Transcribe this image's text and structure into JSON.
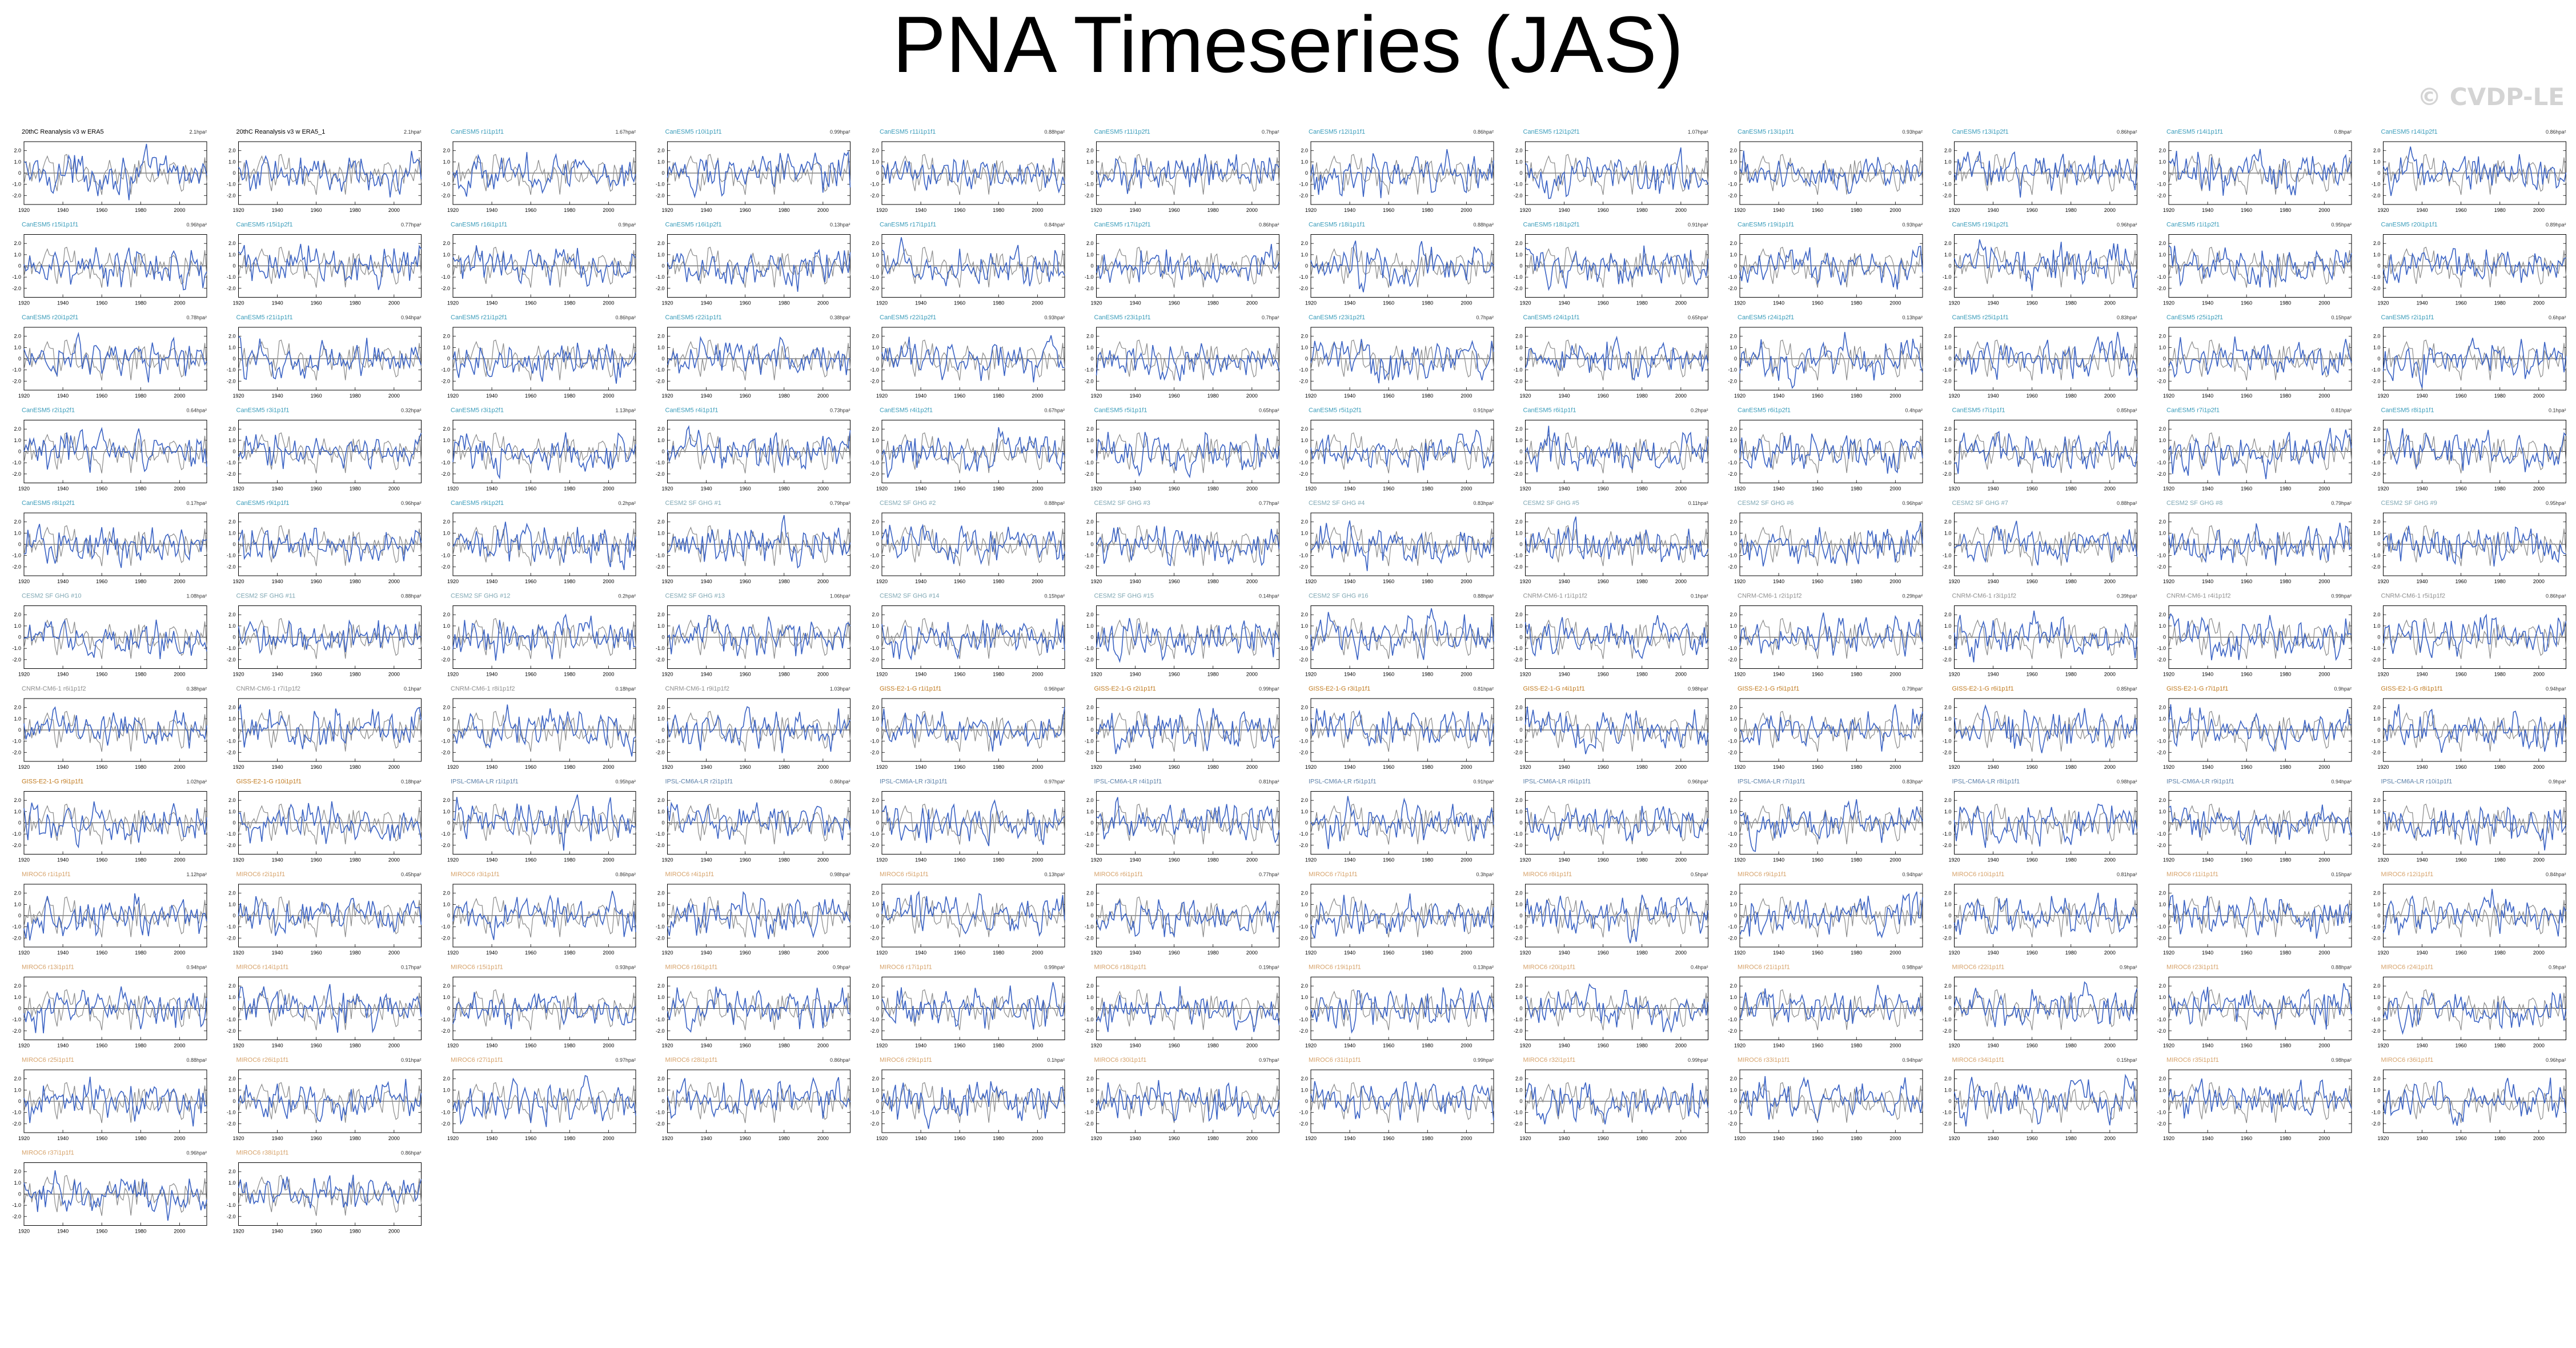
{
  "page": {
    "title": "PNA Timeseries (JAS)",
    "watermark": "© CVDP-LE"
  },
  "chart_data": {
    "type": "line",
    "x_range": [
      1920,
      2014
    ],
    "x_ticks": [
      "1920",
      "1940",
      "1960",
      "1980",
      "2000"
    ],
    "y_ticks": [
      "2.0",
      "1.0",
      "0",
      "-1.0",
      "-2.0"
    ],
    "ylim": [
      -2.8,
      2.8
    ],
    "grid": false,
    "colors": {
      "reference": "#8a8a8a",
      "model": "#3b63c4",
      "obs_title": "#000000",
      "cesm1": "#3a9cba",
      "cesm2": "#7fa7b3",
      "cnrm": "#8f8f8f",
      "giss": "#c07a1f",
      "ipsl": "#5c80a8",
      "miroc": "#d6a26a"
    },
    "panels": [
      {
        "title": "20thC Reanalysis v3 w ERA5",
        "stat": "2.1hpa²",
        "color": "obs"
      },
      {
        "title": "20thC Reanalysis v3 w ERA5_1",
        "stat": "2.1hpa²",
        "color": "obs"
      },
      {
        "title": "CanESM5 r1i1p1f1",
        "stat": "1.67hpa²",
        "color": "cesm1"
      },
      {
        "title": "CanESM5 r10i1p1f1",
        "stat": "0.99hpa²",
        "color": "cesm1"
      },
      {
        "title": "CanESM5 r11i1p1f1",
        "stat": "0.88hpa²",
        "color": "cesm1"
      },
      {
        "title": "CanESM5 r11i1p2f1",
        "stat": "0.7hpa²",
        "color": "cesm1"
      },
      {
        "title": "CanESM5 r12i1p1f1",
        "stat": "0.86hpa²",
        "color": "cesm1"
      },
      {
        "title": "CanESM5 r12i1p2f1",
        "stat": "1.07hpa²",
        "color": "cesm1"
      },
      {
        "title": "CanESM5 r13i1p1f1",
        "stat": "0.93hpa²",
        "color": "cesm1"
      },
      {
        "title": "CanESM5 r13i1p2f1",
        "stat": "0.86hpa²",
        "color": "cesm1"
      },
      {
        "title": "CanESM5 r14i1p1f1",
        "stat": "0.8hpa²",
        "color": "cesm1"
      },
      {
        "title": "CanESM5 r14i1p2f1",
        "stat": "0.86hpa²",
        "color": "cesm1"
      },
      {
        "title": "CanESM5 r15i1p1f1",
        "stat": "0.96hpa²",
        "color": "cesm1"
      },
      {
        "title": "CanESM5 r15i1p2f1",
        "stat": "0.77hpa²",
        "color": "cesm1"
      },
      {
        "title": "CanESM5 r16i1p1f1",
        "stat": "0.9hpa²",
        "color": "cesm1"
      },
      {
        "title": "CanESM5 r16i1p2f1",
        "stat": "0.13hpa²",
        "color": "cesm1"
      },
      {
        "title": "CanESM5 r17i1p1f1",
        "stat": "0.84hpa²",
        "color": "cesm1"
      },
      {
        "title": "CanESM5 r17i1p2f1",
        "stat": "0.86hpa²",
        "color": "cesm1"
      },
      {
        "title": "CanESM5 r18i1p1f1",
        "stat": "0.88hpa²",
        "color": "cesm1"
      },
      {
        "title": "CanESM5 r18i1p2f1",
        "stat": "0.91hpa²",
        "color": "cesm1"
      },
      {
        "title": "CanESM5 r19i1p1f1",
        "stat": "0.93hpa²",
        "color": "cesm1"
      },
      {
        "title": "CanESM5 r19i1p2f1",
        "stat": "0.96hpa²",
        "color": "cesm1"
      },
      {
        "title": "CanESM5 r1i1p2f1",
        "stat": "0.95hpa²",
        "color": "cesm1"
      },
      {
        "title": "CanESM5 r20i1p1f1",
        "stat": "0.89hpa²",
        "color": "cesm1"
      },
      {
        "title": "CanESM5 r20i1p2f1",
        "stat": "0.78hpa²",
        "color": "cesm1"
      },
      {
        "title": "CanESM5 r21i1p1f1",
        "stat": "0.94hpa²",
        "color": "cesm1"
      },
      {
        "title": "CanESM5 r21i1p2f1",
        "stat": "0.86hpa²",
        "color": "cesm1"
      },
      {
        "title": "CanESM5 r22i1p1f1",
        "stat": "0.38hpa²",
        "color": "cesm1"
      },
      {
        "title": "CanESM5 r22i1p2f1",
        "stat": "0.93hpa²",
        "color": "cesm1"
      },
      {
        "title": "CanESM5 r23i1p1f1",
        "stat": "0.7hpa²",
        "color": "cesm1"
      },
      {
        "title": "CanESM5 r23i1p2f1",
        "stat": "0.7hpa²",
        "color": "cesm1"
      },
      {
        "title": "CanESM5 r24i1p1f1",
        "stat": "0.65hpa²",
        "color": "cesm1"
      },
      {
        "title": "CanESM5 r24i1p2f1",
        "stat": "0.13hpa²",
        "color": "cesm1"
      },
      {
        "title": "CanESM5 r25i1p1f1",
        "stat": "0.83hpa²",
        "color": "cesm1"
      },
      {
        "title": "CanESM5 r25i1p2f1",
        "stat": "0.15hpa²",
        "color": "cesm1"
      },
      {
        "title": "CanESM5 r2i1p1f1",
        "stat": "0.6hpa²",
        "color": "cesm1"
      },
      {
        "title": "CanESM5 r2i1p2f1",
        "stat": "0.64hpa²",
        "color": "cesm1"
      },
      {
        "title": "CanESM5 r3i1p1f1",
        "stat": "0.32hpa²",
        "color": "cesm1"
      },
      {
        "title": "CanESM5 r3i1p2f1",
        "stat": "1.13hpa²",
        "color": "cesm1"
      },
      {
        "title": "CanESM5 r4i1p1f1",
        "stat": "0.73hpa²",
        "color": "cesm1"
      },
      {
        "title": "CanESM5 r4i1p2f1",
        "stat": "0.67hpa²",
        "color": "cesm1"
      },
      {
        "title": "CanESM5 r5i1p1f1",
        "stat": "0.65hpa²",
        "color": "cesm1"
      },
      {
        "title": "CanESM5 r5i1p2f1",
        "stat": "0.91hpa²",
        "color": "cesm1"
      },
      {
        "title": "CanESM5 r6i1p1f1",
        "stat": "0.2hpa²",
        "color": "cesm1"
      },
      {
        "title": "CanESM5 r6i1p2f1",
        "stat": "0.4hpa²",
        "color": "cesm1"
      },
      {
        "title": "CanESM5 r7i1p1f1",
        "stat": "0.85hpa²",
        "color": "cesm1"
      },
      {
        "title": "CanESM5 r7i1p2f1",
        "stat": "0.81hpa²",
        "color": "cesm1"
      },
      {
        "title": "CanESM5 r8i1p1f1",
        "stat": "0.1hpa²",
        "color": "cesm1"
      },
      {
        "title": "CanESM5 r8i1p2f1",
        "stat": "0.17hpa²",
        "color": "cesm1"
      },
      {
        "title": "CanESM5 r9i1p1f1",
        "stat": "0.96hpa²",
        "color": "cesm1"
      },
      {
        "title": "CanESM5 r9i1p2f1",
        "stat": "0.2hpa²",
        "color": "cesm1"
      },
      {
        "title": "CESM2 SF GHG #1",
        "stat": "0.79hpa²",
        "color": "cesm2"
      },
      {
        "title": "CESM2 SF GHG #2",
        "stat": "0.88hpa²",
        "color": "cesm2"
      },
      {
        "title": "CESM2 SF GHG #3",
        "stat": "0.77hpa²",
        "color": "cesm2"
      },
      {
        "title": "CESM2 SF GHG #4",
        "stat": "0.83hpa²",
        "color": "cesm2"
      },
      {
        "title": "CESM2 SF GHG #5",
        "stat": "0.11hpa²",
        "color": "cesm2"
      },
      {
        "title": "CESM2 SF GHG #6",
        "stat": "0.96hpa²",
        "color": "cesm2"
      },
      {
        "title": "CESM2 SF GHG #7",
        "stat": "0.88hpa²",
        "color": "cesm2"
      },
      {
        "title": "CESM2 SF GHG #8",
        "stat": "0.79hpa²",
        "color": "cesm2"
      },
      {
        "title": "CESM2 SF GHG #9",
        "stat": "0.95hpa²",
        "color": "cesm2"
      },
      {
        "title": "CESM2 SF GHG #10",
        "stat": "1.08hpa²",
        "color": "cesm2"
      },
      {
        "title": "CESM2 SF GHG #11",
        "stat": "0.88hpa²",
        "color": "cesm2"
      },
      {
        "title": "CESM2 SF GHG #12",
        "stat": "0.2hpa²",
        "color": "cesm2"
      },
      {
        "title": "CESM2 SF GHG #13",
        "stat": "1.06hpa²",
        "color": "cesm2"
      },
      {
        "title": "CESM2 SF GHG #14",
        "stat": "0.15hpa²",
        "color": "cesm2"
      },
      {
        "title": "CESM2 SF GHG #15",
        "stat": "0.14hpa²",
        "color": "cesm2"
      },
      {
        "title": "CESM2 SF GHG #16",
        "stat": "0.88hpa²",
        "color": "cesm2"
      },
      {
        "title": "CNRM-CM6-1 r1i1p1f2",
        "stat": "0.1hpa²",
        "color": "cnrm"
      },
      {
        "title": "CNRM-CM6-1 r2i1p1f2",
        "stat": "0.29hpa²",
        "color": "cnrm"
      },
      {
        "title": "CNRM-CM6-1 r3i1p1f2",
        "stat": "0.39hpa²",
        "color": "cnrm"
      },
      {
        "title": "CNRM-CM6-1 r4i1p1f2",
        "stat": "0.99hpa²",
        "color": "cnrm"
      },
      {
        "title": "CNRM-CM6-1 r5i1p1f2",
        "stat": "0.86hpa²",
        "color": "cnrm"
      },
      {
        "title": "CNRM-CM6-1 r6i1p1f2",
        "stat": "0.38hpa²",
        "color": "cnrm"
      },
      {
        "title": "CNRM-CM6-1 r7i1p1f2",
        "stat": "0.1hpa²",
        "color": "cnrm"
      },
      {
        "title": "CNRM-CM6-1 r8i1p1f2",
        "stat": "0.18hpa²",
        "color": "cnrm"
      },
      {
        "title": "CNRM-CM6-1 r9i1p1f2",
        "stat": "1.03hpa²",
        "color": "cnrm"
      },
      {
        "title": "GISS-E2-1-G r1i1p1f1",
        "stat": "0.96hpa²",
        "color": "giss"
      },
      {
        "title": "GISS-E2-1-G r2i1p1f1",
        "stat": "0.99hpa²",
        "color": "giss"
      },
      {
        "title": "GISS-E2-1-G r3i1p1f1",
        "stat": "0.81hpa²",
        "color": "giss"
      },
      {
        "title": "GISS-E2-1-G r4i1p1f1",
        "stat": "0.98hpa²",
        "color": "giss"
      },
      {
        "title": "GISS-E2-1-G r5i1p1f1",
        "stat": "0.79hpa²",
        "color": "giss"
      },
      {
        "title": "GISS-E2-1-G r6i1p1f1",
        "stat": "0.85hpa²",
        "color": "giss"
      },
      {
        "title": "GISS-E2-1-G r7i1p1f1",
        "stat": "0.9hpa²",
        "color": "giss"
      },
      {
        "title": "GISS-E2-1-G r8i1p1f1",
        "stat": "0.94hpa²",
        "color": "giss"
      },
      {
        "title": "GISS-E2-1-G r9i1p1f1",
        "stat": "1.02hpa²",
        "color": "giss"
      },
      {
        "title": "GISS-E2-1-G r10i1p1f1",
        "stat": "0.18hpa²",
        "color": "giss"
      },
      {
        "title": "IPSL-CM6A-LR r1i1p1f1",
        "stat": "0.95hpa²",
        "color": "ipsl"
      },
      {
        "title": "IPSL-CM6A-LR r2i1p1f1",
        "stat": "0.86hpa²",
        "color": "ipsl"
      },
      {
        "title": "IPSL-CM6A-LR r3i1p1f1",
        "stat": "0.97hpa²",
        "color": "ipsl"
      },
      {
        "title": "IPSL-CM6A-LR r4i1p1f1",
        "stat": "0.81hpa²",
        "color": "ipsl"
      },
      {
        "title": "IPSL-CM6A-LR r5i1p1f1",
        "stat": "0.91hpa²",
        "color": "ipsl"
      },
      {
        "title": "IPSL-CM6A-LR r6i1p1f1",
        "stat": "0.96hpa²",
        "color": "ipsl"
      },
      {
        "title": "IPSL-CM6A-LR r7i1p1f1",
        "stat": "0.83hpa²",
        "color": "ipsl"
      },
      {
        "title": "IPSL-CM6A-LR r8i1p1f1",
        "stat": "0.98hpa²",
        "color": "ipsl"
      },
      {
        "title": "IPSL-CM6A-LR r9i1p1f1",
        "stat": "0.94hpa²",
        "color": "ipsl"
      },
      {
        "title": "IPSL-CM6A-LR r10i1p1f1",
        "stat": "0.9hpa²",
        "color": "ipsl"
      },
      {
        "title": "MIROC6 r1i1p1f1",
        "stat": "1.12hpa²",
        "color": "miroc"
      },
      {
        "title": "MIROC6 r2i1p1f1",
        "stat": "0.45hpa²",
        "color": "miroc"
      },
      {
        "title": "MIROC6 r3i1p1f1",
        "stat": "0.86hpa²",
        "color": "miroc"
      },
      {
        "title": "MIROC6 r4i1p1f1",
        "stat": "0.98hpa²",
        "color": "miroc"
      },
      {
        "title": "MIROC6 r5i1p1f1",
        "stat": "0.13hpa²",
        "color": "miroc"
      },
      {
        "title": "MIROC6 r6i1p1f1",
        "stat": "0.77hpa²",
        "color": "miroc"
      },
      {
        "title": "MIROC6 r7i1p1f1",
        "stat": "0.3hpa²",
        "color": "miroc"
      },
      {
        "title": "MIROC6 r8i1p1f1",
        "stat": "0.5hpa²",
        "color": "miroc"
      },
      {
        "title": "MIROC6 r9i1p1f1",
        "stat": "0.94hpa²",
        "color": "miroc"
      },
      {
        "title": "MIROC6 r10i1p1f1",
        "stat": "0.81hpa²",
        "color": "miroc"
      },
      {
        "title": "MIROC6 r11i1p1f1",
        "stat": "0.15hpa²",
        "color": "miroc"
      },
      {
        "title": "MIROC6 r12i1p1f1",
        "stat": "0.84hpa²",
        "color": "miroc"
      },
      {
        "title": "MIROC6 r13i1p1f1",
        "stat": "0.94hpa²",
        "color": "miroc"
      },
      {
        "title": "MIROC6 r14i1p1f1",
        "stat": "0.17hpa²",
        "color": "miroc"
      },
      {
        "title": "MIROC6 r15i1p1f1",
        "stat": "0.93hpa²",
        "color": "miroc"
      },
      {
        "title": "MIROC6 r16i1p1f1",
        "stat": "0.9hpa²",
        "color": "miroc"
      },
      {
        "title": "MIROC6 r17i1p1f1",
        "stat": "0.99hpa²",
        "color": "miroc"
      },
      {
        "title": "MIROC6 r18i1p1f1",
        "stat": "0.19hpa²",
        "color": "miroc"
      },
      {
        "title": "MIROC6 r19i1p1f1",
        "stat": "0.13hpa²",
        "color": "miroc"
      },
      {
        "title": "MIROC6 r20i1p1f1",
        "stat": "0.4hpa²",
        "color": "miroc"
      },
      {
        "title": "MIROC6 r21i1p1f1",
        "stat": "0.98hpa²",
        "color": "miroc"
      },
      {
        "title": "MIROC6 r22i1p1f1",
        "stat": "0.9hpa²",
        "color": "miroc"
      },
      {
        "title": "MIROC6 r23i1p1f1",
        "stat": "0.88hpa²",
        "color": "miroc"
      },
      {
        "title": "MIROC6 r24i1p1f1",
        "stat": "0.9hpa²",
        "color": "miroc"
      },
      {
        "title": "MIROC6 r25i1p1f1",
        "stat": "0.88hpa²",
        "color": "miroc"
      },
      {
        "title": "MIROC6 r26i1p1f1",
        "stat": "0.91hpa²",
        "color": "miroc"
      },
      {
        "title": "MIROC6 r27i1p1f1",
        "stat": "0.97hpa²",
        "color": "miroc"
      },
      {
        "title": "MIROC6 r28i1p1f1",
        "stat": "0.86hpa²",
        "color": "miroc"
      },
      {
        "title": "MIROC6 r29i1p1f1",
        "stat": "0.1hpa²",
        "color": "miroc"
      },
      {
        "title": "MIROC6 r30i1p1f1",
        "stat": "0.97hpa²",
        "color": "miroc"
      },
      {
        "title": "MIROC6 r31i1p1f1",
        "stat": "0.99hpa²",
        "color": "miroc"
      },
      {
        "title": "MIROC6 r32i1p1f1",
        "stat": "0.99hpa²",
        "color": "miroc"
      },
      {
        "title": "MIROC6 r33i1p1f1",
        "stat": "0.94hpa²",
        "color": "miroc"
      },
      {
        "title": "MIROC6 r34i1p1f1",
        "stat": "0.15hpa²",
        "color": "miroc"
      },
      {
        "title": "MIROC6 r35i1p1f1",
        "stat": "0.98hpa²",
        "color": "miroc"
      },
      {
        "title": "MIROC6 r36i1p1f1",
        "stat": "0.96hpa²",
        "color": "miroc"
      },
      {
        "title": "MIROC6 r37i1p1f1",
        "stat": "0.96hpa²",
        "color": "miroc"
      },
      {
        "title": "MIROC6 r38i1p1f1",
        "stat": "0.86hpa²",
        "color": "miroc"
      }
    ]
  }
}
